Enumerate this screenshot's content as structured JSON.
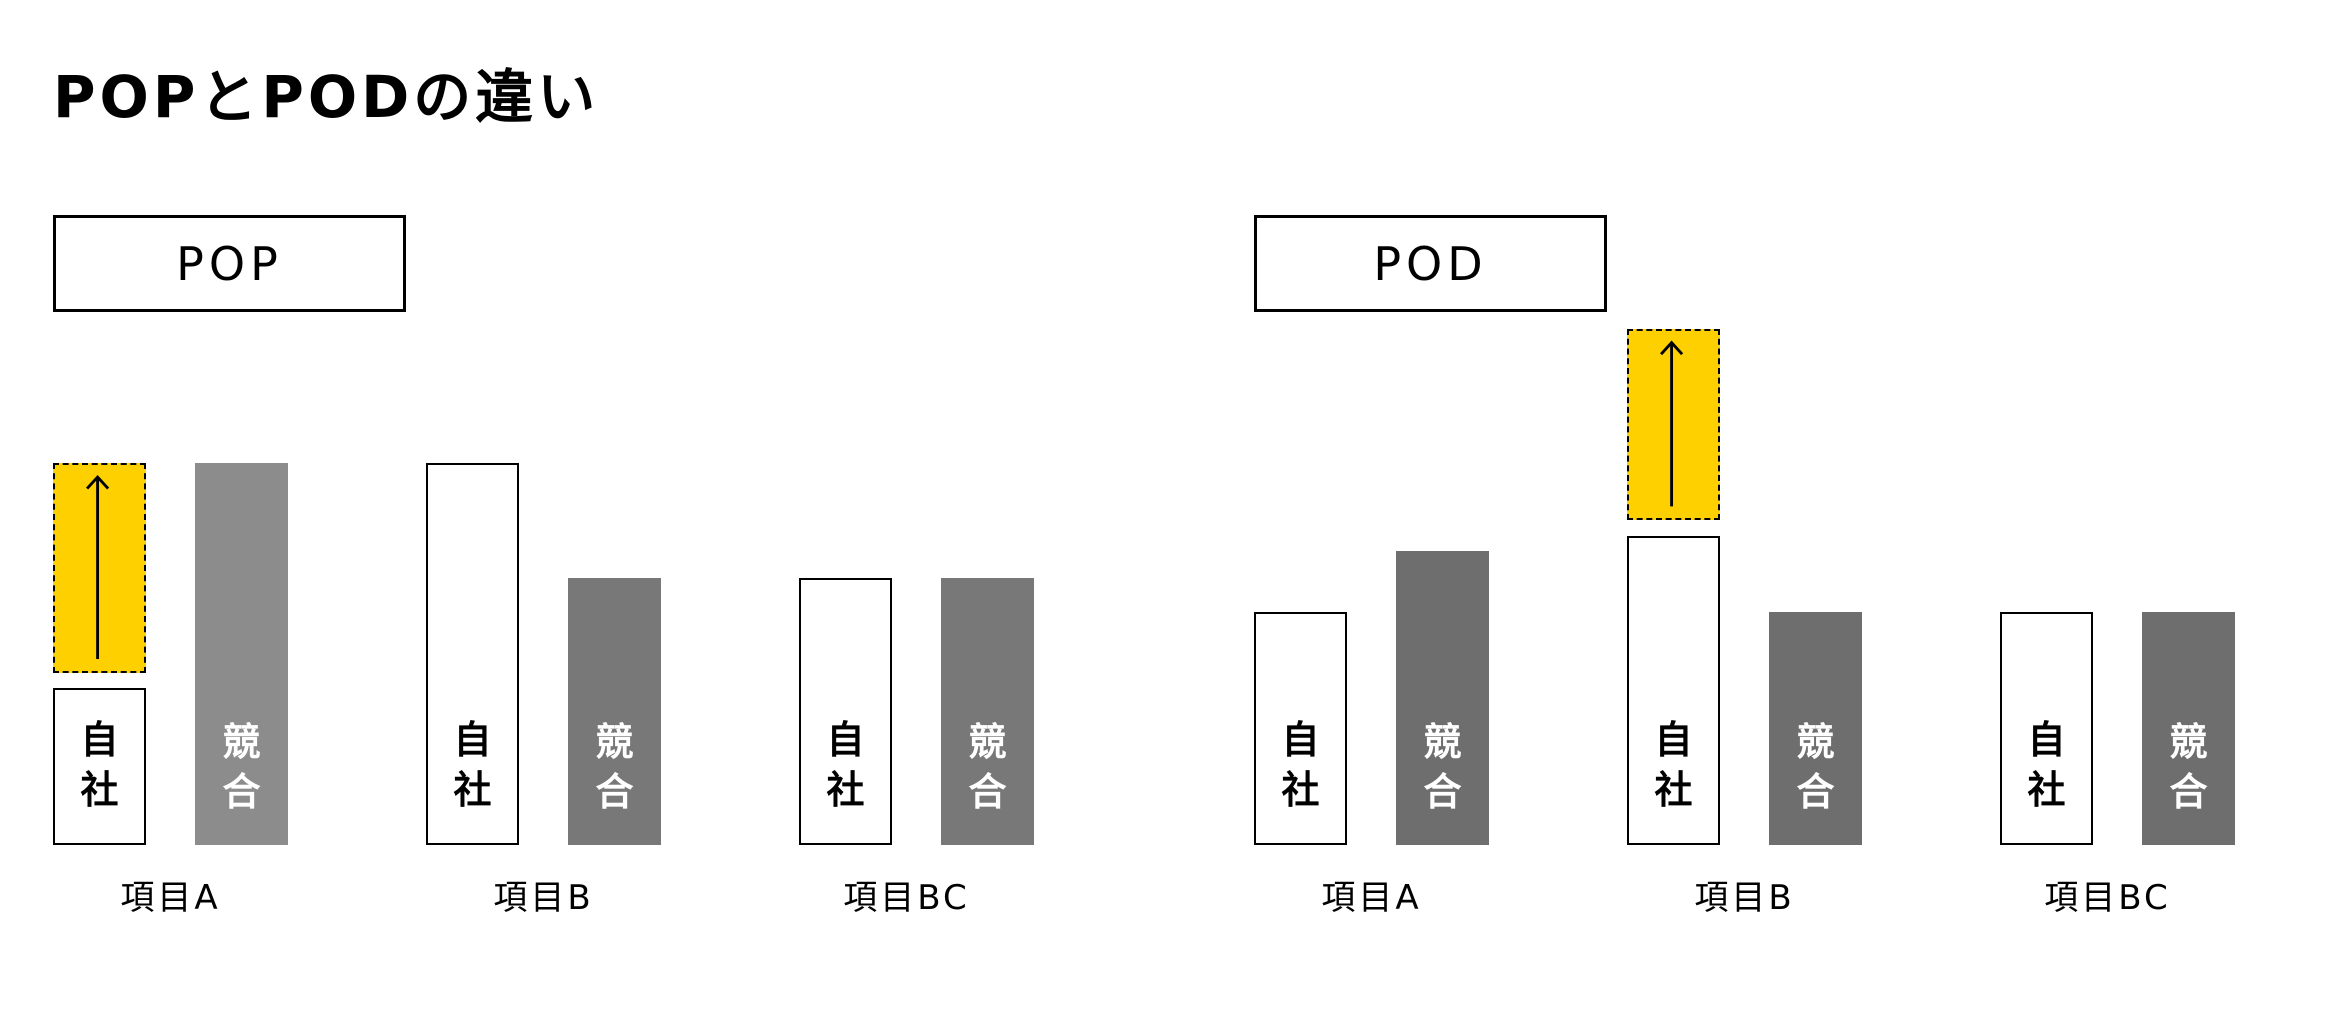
{
  "title": "POPとPODの違い",
  "colors": {
    "highlight": "#ffd000",
    "self_fill": "#ffffff"
  },
  "chart_data": [
    {
      "type": "bar",
      "title": "POP",
      "categories": [
        "項目A",
        "項目B",
        "項目BC"
      ],
      "series": [
        {
          "name": "自社",
          "values": [
            41,
            100,
            70
          ],
          "label_chars": [
            "自",
            "社"
          ]
        },
        {
          "name": "競合",
          "values": [
            100,
            70,
            70
          ],
          "label_chars": [
            "競",
            "合"
          ],
          "color": "#8c8c8c",
          "colors": [
            "#8c8c8c",
            "#787878",
            "#787878"
          ]
        }
      ],
      "highlight": {
        "category": "項目A",
        "series": "自社",
        "from": 45,
        "to": 100,
        "icon": "arrow-up-icon"
      },
      "ylim": [
        0,
        135
      ]
    },
    {
      "type": "bar",
      "title": "POD",
      "categories": [
        "項目A",
        "項目B",
        "項目BC"
      ],
      "series": [
        {
          "name": "自社",
          "values": [
            61,
            81,
            61
          ],
          "label_chars": [
            "自",
            "社"
          ]
        },
        {
          "name": "競合",
          "values": [
            77,
            61,
            61
          ],
          "label_chars": [
            "競",
            "合"
          ],
          "color": "#6e6e6e",
          "colors": [
            "#6e6e6e",
            "#6e6e6e",
            "#6e6e6e"
          ]
        }
      ],
      "highlight": {
        "category": "項目B",
        "series": "自社",
        "from": 85,
        "to": 135,
        "icon": "arrow-up-icon"
      },
      "ylim": [
        0,
        135
      ]
    }
  ]
}
